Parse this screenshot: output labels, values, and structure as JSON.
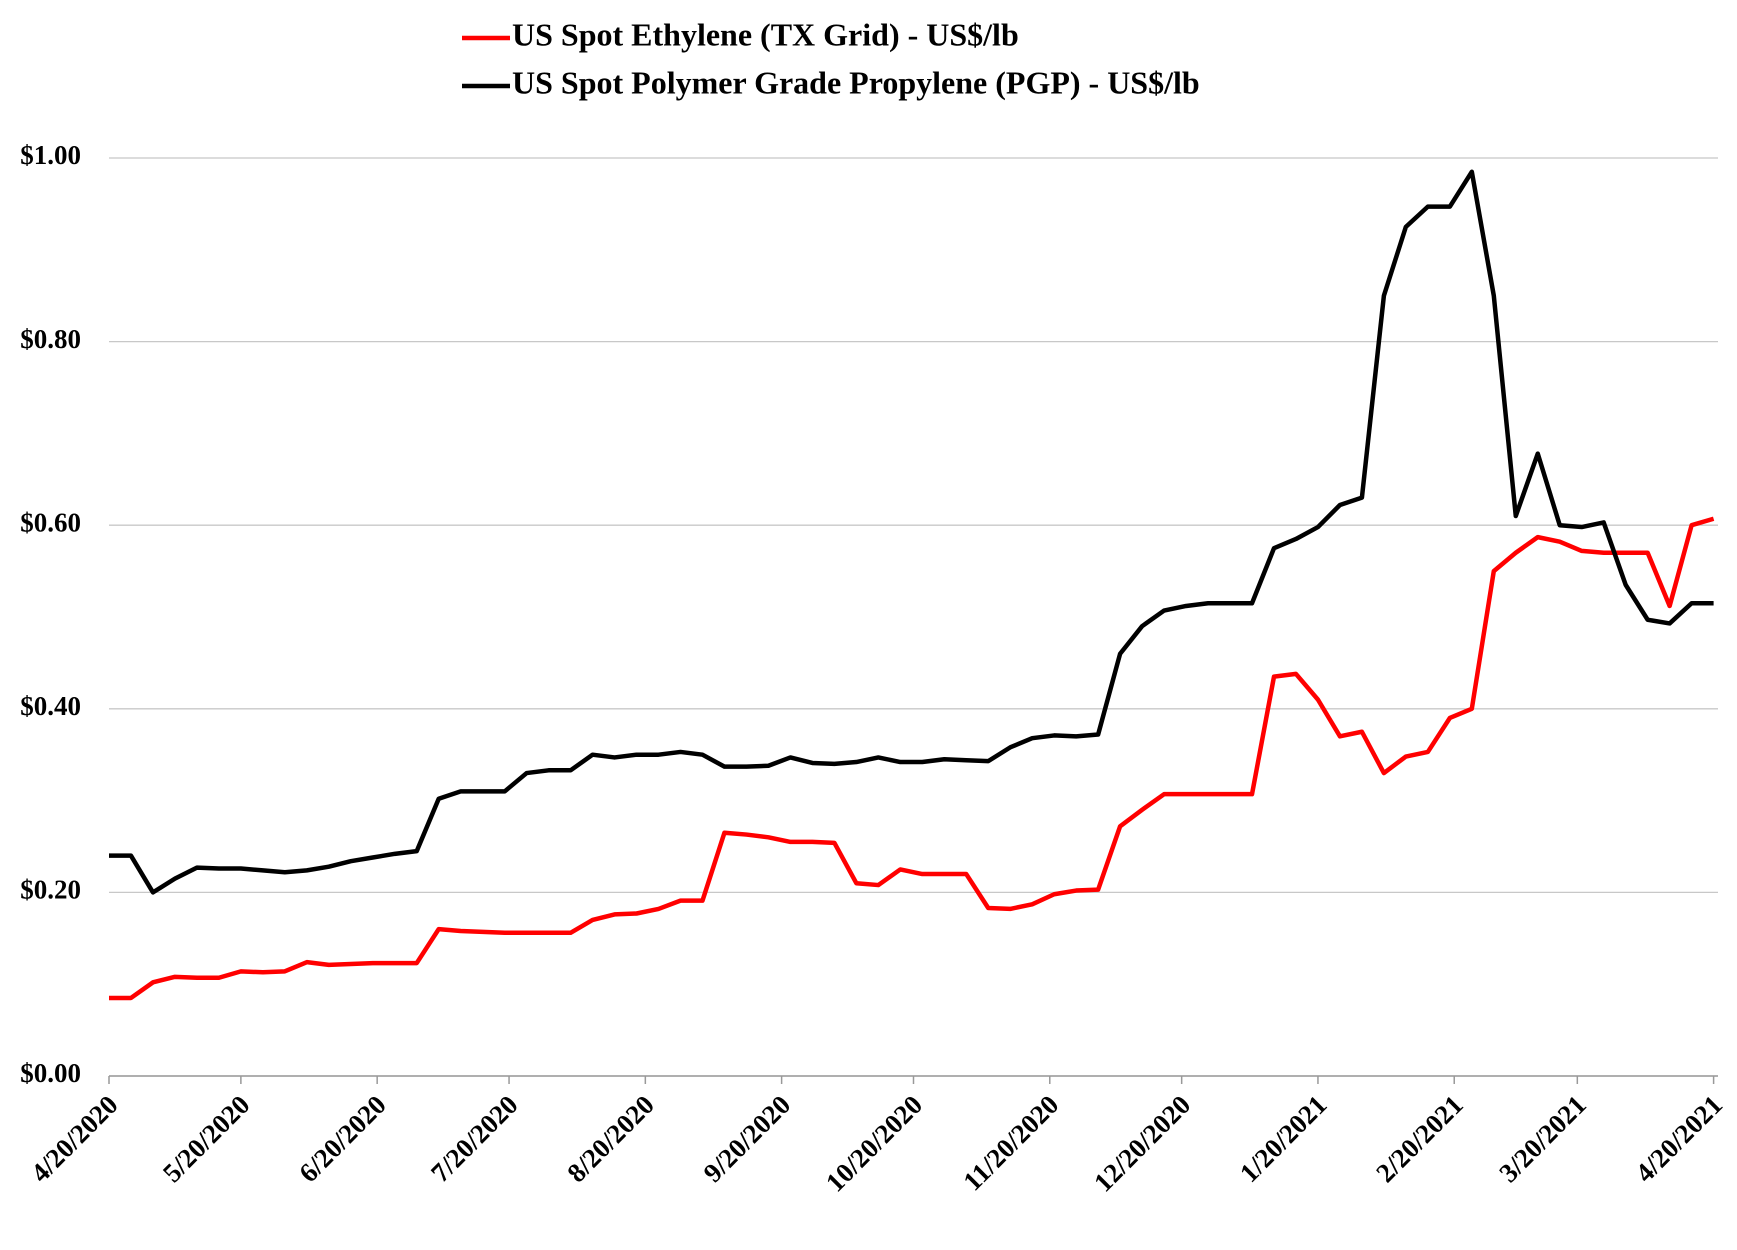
{
  "chart_data": {
    "type": "line",
    "legend": "top",
    "grid": true,
    "x": [
      "4/20/2020",
      "4/25/2020",
      "4/30/2020",
      "5/5/2020",
      "5/10/2020",
      "5/15/2020",
      "5/20/2020",
      "5/25/2020",
      "5/30/2020",
      "6/4/2020",
      "6/9/2020",
      "6/14/2020",
      "6/19/2020",
      "6/24/2020",
      "6/29/2020",
      "7/4/2020",
      "7/9/2020",
      "7/14/2020",
      "7/19/2020",
      "7/24/2020",
      "7/29/2020",
      "8/3/2020",
      "8/8/2020",
      "8/13/2020",
      "8/18/2020",
      "8/23/2020",
      "8/28/2020",
      "9/2/2020",
      "9/7/2020",
      "9/12/2020",
      "9/17/2020",
      "9/22/2020",
      "9/27/2020",
      "10/2/2020",
      "10/7/2020",
      "10/12/2020",
      "10/17/2020",
      "10/22/2020",
      "10/27/2020",
      "11/1/2020",
      "11/6/2020",
      "11/11/2020",
      "11/16/2020",
      "11/21/2020",
      "11/26/2020",
      "12/1/2020",
      "12/6/2020",
      "12/11/2020",
      "12/16/2020",
      "12/21/2020",
      "12/26/2020",
      "12/31/2020",
      "1/5/2021",
      "1/10/2021",
      "1/15/2021",
      "1/20/2021",
      "1/25/2021",
      "1/30/2021",
      "2/4/2021",
      "2/9/2021",
      "2/14/2021",
      "2/19/2021",
      "2/24/2021",
      "3/1/2021",
      "3/6/2021",
      "3/11/2021",
      "3/16/2021",
      "3/21/2021",
      "3/26/2021",
      "3/31/2021",
      "4/5/2021",
      "4/10/2021",
      "4/15/2021",
      "4/20/2021"
    ],
    "series": [
      {
        "name": "US Spot Ethylene (TX Grid) - US$/lb",
        "color": "#ff0000",
        "values": [
          0.085,
          0.085,
          0.102,
          0.108,
          0.107,
          0.107,
          0.114,
          0.113,
          0.114,
          0.124,
          0.121,
          0.122,
          0.123,
          0.123,
          0.123,
          0.16,
          0.158,
          0.157,
          0.156,
          0.156,
          0.156,
          0.156,
          0.17,
          0.176,
          0.177,
          0.182,
          0.191,
          0.191,
          0.265,
          0.263,
          0.26,
          0.255,
          0.255,
          0.254,
          0.21,
          0.208,
          0.225,
          0.22,
          0.22,
          0.22,
          0.183,
          0.182,
          0.187,
          0.198,
          0.202,
          0.203,
          0.272,
          0.29,
          0.307,
          0.307,
          0.307,
          0.307,
          0.307,
          0.435,
          0.438,
          0.41,
          0.37,
          0.375,
          0.33,
          0.348,
          0.353,
          0.39,
          0.4,
          0.55,
          0.57,
          0.587,
          0.582,
          0.572,
          0.57,
          0.57,
          0.57,
          0.512,
          0.6,
          0.607
        ]
      },
      {
        "name": "US Spot Polymer Grade Propylene (PGP) - US$/lb",
        "color": "#000000",
        "values": [
          0.24,
          0.24,
          0.2,
          0.215,
          0.227,
          0.226,
          0.226,
          0.224,
          0.222,
          0.224,
          0.228,
          0.234,
          0.238,
          0.242,
          0.245,
          0.302,
          0.31,
          0.31,
          0.31,
          0.33,
          0.333,
          0.333,
          0.35,
          0.347,
          0.35,
          0.35,
          0.353,
          0.35,
          0.337,
          0.337,
          0.338,
          0.347,
          0.341,
          0.34,
          0.342,
          0.347,
          0.342,
          0.342,
          0.345,
          0.344,
          0.343,
          0.358,
          0.368,
          0.371,
          0.37,
          0.372,
          0.46,
          0.49,
          0.507,
          0.512,
          0.515,
          0.515,
          0.515,
          0.575,
          0.585,
          0.598,
          0.622,
          0.63,
          0.85,
          0.925,
          0.947,
          0.947,
          0.985,
          0.85,
          0.61,
          0.678,
          0.6,
          0.598,
          0.603,
          0.535,
          0.497,
          0.493,
          0.515,
          0.515
        ]
      }
    ],
    "xlim": [
      "4/20/2020",
      "4/21/2021"
    ],
    "xticks": [
      "4/20/2020",
      "5/20/2020",
      "6/20/2020",
      "7/20/2020",
      "8/20/2020",
      "9/20/2020",
      "10/20/2020",
      "11/20/2020",
      "12/20/2020",
      "1/20/2021",
      "2/20/2021",
      "3/20/2021",
      "4/20/2021"
    ],
    "ylim": [
      0,
      1
    ],
    "yticks": [
      {
        "value": 0,
        "label": "$0.00"
      },
      {
        "value": 0.2,
        "label": "$0.20"
      },
      {
        "value": 0.4,
        "label": "$0.40"
      },
      {
        "value": 0.6,
        "label": "$0.60"
      },
      {
        "value": 0.8,
        "label": "$0.80"
      },
      {
        "value": 1,
        "label": "$1.00"
      }
    ]
  }
}
